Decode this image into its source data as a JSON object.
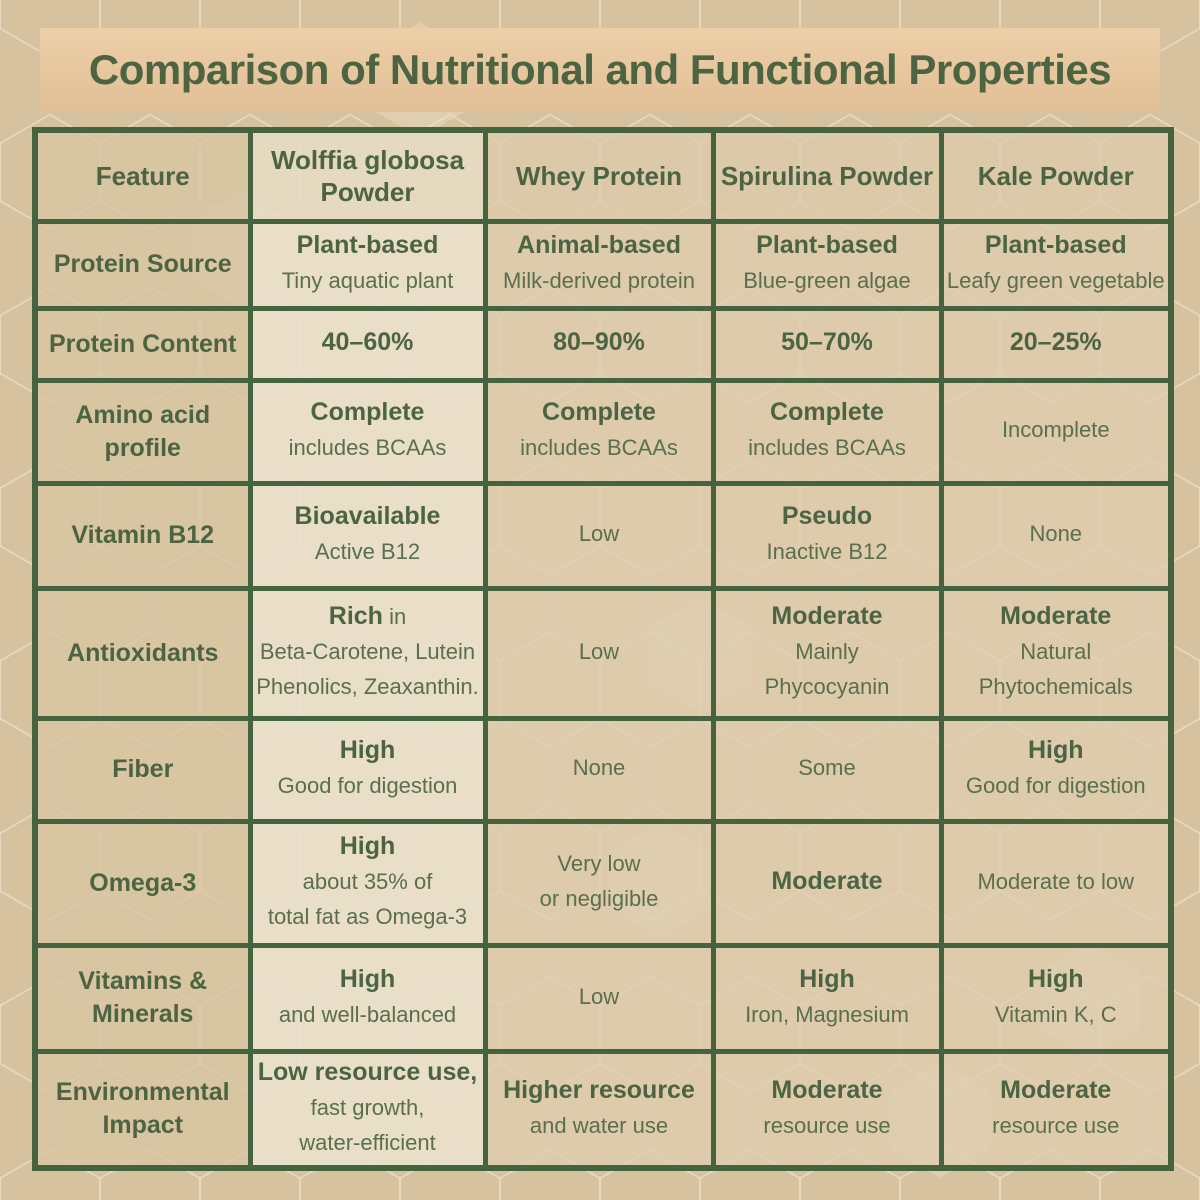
{
  "title": "Comparison of Nutritional and Functional Properties",
  "colors": {
    "border_green": "#45633e",
    "title_text": "#4c6442",
    "bold_text": "#4c6442",
    "regular_text": "#5a6f4e",
    "page_bg": "#d6c29f",
    "title_band_top": "#eccfa8",
    "title_band_bottom": "#e2bf95",
    "highlight_column_bg": "#e9dfcb",
    "feature_column_bg": "#d8c5a2",
    "value_column_bg": "#decdaf"
  },
  "table": {
    "columns": [
      {
        "label": "Feature"
      },
      {
        "label": "Wolffia globosa Powder",
        "highlight": true
      },
      {
        "label": "Whey Protein"
      },
      {
        "label": "Spirulina Powder"
      },
      {
        "label": "Kale Powder"
      }
    ],
    "rows": [
      {
        "feature": "Protein Source",
        "cells": [
          {
            "lines": [
              [
                {
                  "t": "Plant-based",
                  "b": true
                }
              ],
              [
                {
                  "t": "Tiny aquatic plant",
                  "b": false
                }
              ]
            ]
          },
          {
            "lines": [
              [
                {
                  "t": "Animal-based",
                  "b": true
                }
              ],
              [
                {
                  "t": "Milk-derived protein",
                  "b": false
                }
              ]
            ]
          },
          {
            "lines": [
              [
                {
                  "t": "Plant-based",
                  "b": true
                }
              ],
              [
                {
                  "t": "Blue-green algae",
                  "b": false
                }
              ]
            ]
          },
          {
            "lines": [
              [
                {
                  "t": "Plant-based",
                  "b": true
                }
              ],
              [
                {
                  "t": "Leafy green vegetable",
                  "b": false
                }
              ]
            ]
          }
        ]
      },
      {
        "feature": "Protein Content",
        "cells": [
          {
            "lines": [
              [
                {
                  "t": "40–60%",
                  "b": true
                }
              ]
            ]
          },
          {
            "lines": [
              [
                {
                  "t": "80–90%",
                  "b": true
                }
              ]
            ]
          },
          {
            "lines": [
              [
                {
                  "t": "50–70%",
                  "b": true
                }
              ]
            ]
          },
          {
            "lines": [
              [
                {
                  "t": "20–25%",
                  "b": true
                }
              ]
            ]
          }
        ]
      },
      {
        "feature": "Amino acid profile",
        "cells": [
          {
            "lines": [
              [
                {
                  "t": "Complete",
                  "b": true
                }
              ],
              [
                {
                  "t": "includes BCAAs",
                  "b": false
                }
              ]
            ]
          },
          {
            "lines": [
              [
                {
                  "t": "Complete",
                  "b": true
                }
              ],
              [
                {
                  "t": "includes BCAAs",
                  "b": false
                }
              ]
            ]
          },
          {
            "lines": [
              [
                {
                  "t": "Complete",
                  "b": true
                }
              ],
              [
                {
                  "t": "includes BCAAs",
                  "b": false
                }
              ]
            ]
          },
          {
            "lines": [
              [
                {
                  "t": "Incomplete",
                  "b": false
                }
              ]
            ]
          }
        ]
      },
      {
        "feature": "Vitamin B12",
        "cells": [
          {
            "lines": [
              [
                {
                  "t": "Bioavailable",
                  "b": true
                }
              ],
              [
                {
                  "t": "Active B12",
                  "b": false
                }
              ]
            ]
          },
          {
            "lines": [
              [
                {
                  "t": "Low",
                  "b": false
                }
              ]
            ]
          },
          {
            "lines": [
              [
                {
                  "t": "Pseudo",
                  "b": true
                }
              ],
              [
                {
                  "t": "Inactive B12",
                  "b": false
                }
              ]
            ]
          },
          {
            "lines": [
              [
                {
                  "t": "None",
                  "b": false
                }
              ]
            ]
          }
        ]
      },
      {
        "feature": "Antioxidants",
        "cells": [
          {
            "lines": [
              [
                {
                  "t": "Rich",
                  "b": true
                },
                {
                  "t": " in",
                  "b": false
                }
              ],
              [
                {
                  "t": "Beta-Carotene, Lutein",
                  "b": false
                }
              ],
              [
                {
                  "t": "Phenolics, Zeaxanthin.",
                  "b": false
                }
              ]
            ]
          },
          {
            "lines": [
              [
                {
                  "t": "Low",
                  "b": false
                }
              ]
            ]
          },
          {
            "lines": [
              [
                {
                  "t": "Moderate",
                  "b": true
                }
              ],
              [
                {
                  "t": "Mainly",
                  "b": false
                }
              ],
              [
                {
                  "t": "Phycocyanin",
                  "b": false
                }
              ]
            ]
          },
          {
            "lines": [
              [
                {
                  "t": "Moderate",
                  "b": true
                }
              ],
              [
                {
                  "t": "Natural",
                  "b": false
                }
              ],
              [
                {
                  "t": "Phytochemicals",
                  "b": false
                }
              ]
            ]
          }
        ]
      },
      {
        "feature": "Fiber",
        "cells": [
          {
            "lines": [
              [
                {
                  "t": "High",
                  "b": true
                }
              ],
              [
                {
                  "t": "Good for digestion",
                  "b": false
                }
              ]
            ]
          },
          {
            "lines": [
              [
                {
                  "t": "None",
                  "b": false
                }
              ]
            ]
          },
          {
            "lines": [
              [
                {
                  "t": "Some",
                  "b": false
                }
              ]
            ]
          },
          {
            "lines": [
              [
                {
                  "t": "High",
                  "b": true
                }
              ],
              [
                {
                  "t": "Good for digestion",
                  "b": false
                }
              ]
            ]
          }
        ]
      },
      {
        "feature": "Omega-3",
        "cells": [
          {
            "lines": [
              [
                {
                  "t": "High",
                  "b": true
                }
              ],
              [
                {
                  "t": "about 35% of",
                  "b": false
                }
              ],
              [
                {
                  "t": "total fat as Omega-3",
                  "b": false
                }
              ]
            ]
          },
          {
            "lines": [
              [
                {
                  "t": "Very low",
                  "b": false
                }
              ],
              [
                {
                  "t": "or negligible",
                  "b": false
                }
              ]
            ]
          },
          {
            "lines": [
              [
                {
                  "t": "Moderate",
                  "b": true
                }
              ]
            ]
          },
          {
            "lines": [
              [
                {
                  "t": "Moderate to low",
                  "b": false
                }
              ]
            ]
          }
        ]
      },
      {
        "feature": "Vitamins & Minerals",
        "cells": [
          {
            "lines": [
              [
                {
                  "t": "High",
                  "b": true
                }
              ],
              [
                {
                  "t": "and well-balanced",
                  "b": false
                }
              ]
            ]
          },
          {
            "lines": [
              [
                {
                  "t": "Low",
                  "b": false
                }
              ]
            ]
          },
          {
            "lines": [
              [
                {
                  "t": "High",
                  "b": true
                }
              ],
              [
                {
                  "t": "Iron, Magnesium",
                  "b": false
                }
              ]
            ]
          },
          {
            "lines": [
              [
                {
                  "t": "High",
                  "b": true
                }
              ],
              [
                {
                  "t": "Vitamin K, C",
                  "b": false
                }
              ]
            ]
          }
        ]
      },
      {
        "feature": "Environmental Impact",
        "cells": [
          {
            "lines": [
              [
                {
                  "t": "Low resource use,",
                  "b": true
                }
              ],
              [
                {
                  "t": "fast growth,",
                  "b": false
                }
              ],
              [
                {
                  "t": "water-efficient",
                  "b": false
                }
              ]
            ]
          },
          {
            "lines": [
              [
                {
                  "t": "Higher resource",
                  "b": true
                }
              ],
              [
                {
                  "t": "and water use",
                  "b": false
                }
              ]
            ]
          },
          {
            "lines": [
              [
                {
                  "t": "Moderate",
                  "b": true
                }
              ],
              [
                {
                  "t": "resource use",
                  "b": false
                }
              ]
            ]
          },
          {
            "lines": [
              [
                {
                  "t": "Moderate",
                  "b": true
                }
              ],
              [
                {
                  "t": "resource use",
                  "b": false
                }
              ]
            ]
          }
        ]
      }
    ]
  }
}
